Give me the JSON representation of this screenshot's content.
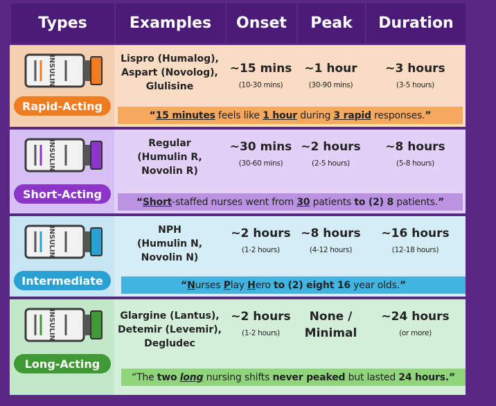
{
  "header": [
    "Types",
    "Examples",
    "Onset",
    "Peak",
    "Duration"
  ],
  "rows": [
    {
      "type": "Rapid-Acting",
      "vial_label": "INSULIN",
      "examples": [
        "Lispro (Humalog),",
        "Aspart (Novolog),",
        "Glulisine"
      ],
      "onset": {
        "main": [
          "~15 mins"
        ],
        "note": "(10-30 mins)"
      },
      "peak": {
        "main": [
          "~1 hour"
        ],
        "note": "(30-90 mins)"
      },
      "duration": {
        "main": [
          "~3 hours"
        ],
        "note": "(3-5 hours)"
      },
      "mnemonic": [
        {
          "text": "“",
          "bold": true
        },
        {
          "text": "15 minutes",
          "bold": true,
          "underline": true
        },
        {
          "text": " feels like "
        },
        {
          "text": "1 hour",
          "bold": true,
          "underline": true
        },
        {
          "text": " during "
        },
        {
          "text": "3 rapid",
          "bold": true,
          "underline": true
        },
        {
          "text": " responses."
        },
        {
          "text": "”",
          "bold": true
        }
      ]
    },
    {
      "type": "Short-Acting",
      "vial_label": "INSULIN",
      "examples": [
        "Regular",
        "(Humulin R,",
        "Novolin R)"
      ],
      "onset": {
        "main": [
          "~30 mins"
        ],
        "note": "(30-60 mins)"
      },
      "peak": {
        "main": [
          "~2 hours"
        ],
        "note": "(2-5 hours)"
      },
      "duration": {
        "main": [
          "~8 hours"
        ],
        "note": "(5-8 hours)"
      },
      "mnemonic": [
        {
          "text": "“",
          "bold": true
        },
        {
          "text": "Short",
          "bold": true,
          "underline": true
        },
        {
          "text": "-staffed nurses went from "
        },
        {
          "text": "30",
          "bold": true,
          "underline": true
        },
        {
          "text": " patients "
        },
        {
          "text": "to (2) 8",
          "bold": true
        },
        {
          "text": " patients."
        },
        {
          "text": "”",
          "bold": true
        }
      ]
    },
    {
      "type": "Intermediate",
      "vial_label": "INSULIN",
      "examples": [
        "NPH",
        "(Humulin N,",
        "Novolin N)"
      ],
      "onset": {
        "main": [
          "~2 hours"
        ],
        "note": "(1-2 hours)"
      },
      "peak": {
        "main": [
          "~8 hours"
        ],
        "note": "(4-12 hours)"
      },
      "duration": {
        "main": [
          "~16 hours"
        ],
        "note": "(12-18 hours)"
      },
      "mnemonic": [
        {
          "text": "“",
          "bold": true
        },
        {
          "text": "N",
          "bold": true,
          "underline": true
        },
        {
          "text": "urses "
        },
        {
          "text": "P",
          "bold": true,
          "underline": true
        },
        {
          "text": "lay "
        },
        {
          "text": "H",
          "bold": true,
          "underline": true
        },
        {
          "text": "ero "
        },
        {
          "text": "to (2) eight 16",
          "bold": true
        },
        {
          "text": " year olds."
        },
        {
          "text": "”",
          "bold": true
        }
      ]
    },
    {
      "type": "Long-Acting",
      "vial_label": "INSULIN",
      "examples": [
        "Glargine (Lantus),",
        "Detemir (Levemir),",
        "Degludec"
      ],
      "onset": {
        "main": [
          "~2 hours"
        ],
        "note": "(1-2 hours)"
      },
      "peak": {
        "main": [
          "None /",
          "Minimal"
        ]
      },
      "duration": {
        "main": [
          "~24 hours"
        ],
        "note": "(or more)"
      },
      "mnemonic": [
        {
          "text": "“The "
        },
        {
          "text": "two",
          "bold": true
        },
        {
          "text": " "
        },
        {
          "text": "long",
          "bold": true,
          "italic": true,
          "underline": true
        },
        {
          "text": " nursing shifts "
        },
        {
          "text": "never peaked",
          "bold": true
        },
        {
          "text": " but lasted "
        },
        {
          "text": "24 hours.",
          "bold": true
        },
        {
          "text": "”",
          "bold": true
        }
      ]
    }
  ]
}
